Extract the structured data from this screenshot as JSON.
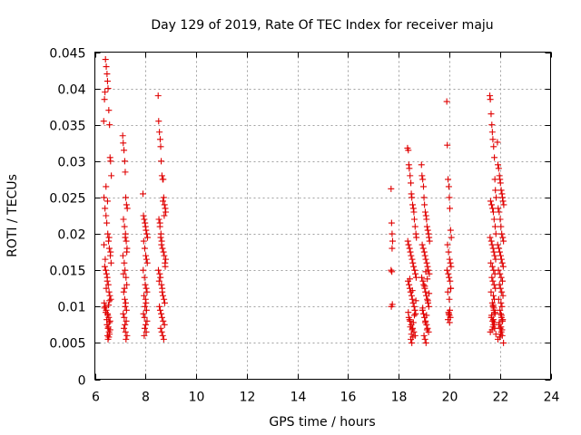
{
  "chart_data": {
    "type": "scatter",
    "title": "Day 129 of 2019, Rate Of TEC Index for receiver maju",
    "xlabel": "GPS time / hours",
    "ylabel": "ROTI / TECUs",
    "xlim": [
      6,
      24
    ],
    "ylim": [
      0,
      0.045
    ],
    "x_ticks": [
      6,
      8,
      10,
      12,
      14,
      16,
      18,
      20,
      22,
      24
    ],
    "x_tick_labels": [
      "6",
      "8",
      "10",
      "12",
      "14",
      "16",
      "18",
      "20",
      "22",
      "24"
    ],
    "y_ticks": [
      0,
      0.005,
      0.01,
      0.015,
      0.02,
      0.025,
      0.03,
      0.035,
      0.04,
      0.045
    ],
    "y_tick_labels": [
      "0",
      "0.005",
      "0.01",
      "0.015",
      "0.02",
      "0.025",
      "0.03",
      "0.035",
      "0.04",
      "0.045"
    ],
    "grid": true,
    "marker": "+",
    "color": "#e00000",
    "series": [
      {
        "name": "ROTI",
        "x": [
          6.35,
          6.38,
          6.4,
          6.42,
          6.45,
          6.48,
          6.5,
          6.52,
          6.55,
          6.58,
          6.6,
          6.62,
          6.65,
          6.36,
          6.4,
          6.44,
          6.47,
          6.51,
          6.54,
          6.57,
          6.61,
          6.64,
          6.39,
          6.43,
          6.46,
          6.49,
          6.53,
          6.56,
          6.59,
          6.63,
          6.37,
          6.41,
          6.45,
          6.5,
          6.55,
          6.6,
          6.48,
          6.52,
          6.56,
          6.5,
          6.52,
          6.55,
          6.58,
          6.6,
          6.53,
          6.57,
          6.47,
          6.51,
          6.43,
          6.38,
          6.54,
          6.58,
          6.45,
          6.49,
          6.41,
          6.62,
          6.36,
          6.56,
          6.5,
          6.44,
          7.1,
          7.12,
          7.15,
          7.18,
          7.2,
          7.22,
          7.25,
          7.28,
          7.13,
          7.17,
          7.21,
          7.24,
          7.27,
          7.11,
          7.16,
          7.19,
          7.23,
          7.26,
          7.14,
          7.18,
          7.22,
          7.2,
          7.25,
          7.12,
          7.16,
          7.24,
          7.19,
          7.15,
          7.21,
          7.27,
          7.23,
          7.13,
          7.17,
          7.26,
          7.2,
          7.9,
          7.92,
          7.95,
          7.98,
          8.0,
          8.02,
          8.05,
          8.08,
          7.93,
          7.97,
          8.01,
          8.04,
          8.07,
          7.91,
          7.96,
          7.99,
          8.03,
          8.06,
          7.94,
          8.0,
          8.02,
          7.98,
          8.04,
          7.92,
          7.96,
          8.06,
          8.01,
          7.97,
          8.03,
          7.95,
          8.5,
          8.52,
          8.55,
          8.58,
          8.6,
          8.62,
          8.65,
          8.68,
          8.7,
          8.72,
          8.75,
          8.78,
          8.8,
          8.53,
          8.57,
          8.61,
          8.64,
          8.67,
          8.71,
          8.74,
          8.77,
          8.51,
          8.56,
          8.59,
          8.63,
          8.66,
          8.69,
          8.73,
          8.76,
          8.55,
          8.58,
          8.62,
          8.65,
          8.7,
          8.75,
          8.6,
          8.64,
          8.68,
          8.72,
          8.57,
          8.6,
          8.63,
          8.8,
          8.78,
          8.66,
          8.54,
          8.74,
          8.69,
          17.7,
          17.72,
          17.74,
          17.76,
          17.7,
          17.73,
          17.75,
          17.71,
          17.74,
          18.35,
          18.38,
          18.4,
          18.42,
          18.45,
          18.48,
          18.5,
          18.52,
          18.55,
          18.58,
          18.6,
          18.62,
          18.65,
          18.68,
          18.7,
          18.36,
          18.39,
          18.43,
          18.46,
          18.49,
          18.53,
          18.56,
          18.59,
          18.63,
          18.66,
          18.69,
          18.37,
          18.41,
          18.44,
          18.47,
          18.51,
          18.54,
          18.57,
          18.61,
          18.64,
          18.67,
          18.4,
          18.45,
          18.5,
          18.55,
          18.6,
          18.65,
          18.48,
          18.52,
          18.56,
          18.5,
          18.53,
          18.46,
          18.58,
          18.43,
          18.62,
          18.38,
          18.68,
          18.54,
          18.44,
          18.9,
          18.92,
          18.95,
          18.98,
          19.0,
          19.02,
          19.05,
          19.08,
          19.1,
          19.12,
          19.15,
          19.18,
          19.2,
          19.22,
          18.93,
          18.97,
          19.01,
          19.04,
          19.07,
          19.11,
          19.14,
          19.17,
          19.21,
          18.91,
          18.96,
          18.99,
          19.03,
          19.06,
          19.09,
          19.13,
          19.16,
          19.19,
          18.94,
          18.98,
          19.02,
          19.06,
          19.1,
          19.14,
          19.18,
          19.0,
          19.04,
          19.08,
          19.12,
          19.05,
          19.1,
          18.95,
          19.15,
          19.2,
          19.03,
          19.13,
          19.07,
          19.9,
          19.92,
          19.95,
          19.98,
          20.0,
          20.02,
          20.05,
          20.08,
          19.93,
          19.97,
          20.01,
          20.04,
          20.07,
          19.91,
          19.96,
          19.99,
          20.03,
          20.06,
          19.94,
          20.0,
          20.02,
          19.98,
          20.04,
          19.95,
          20.01,
          20.0,
          19.97,
          20.05,
          21.6,
          21.62,
          21.65,
          21.68,
          21.7,
          21.72,
          21.75,
          21.78,
          21.8,
          21.82,
          21.85,
          21.63,
          21.67,
          21.71,
          21.74,
          21.77,
          21.81,
          21.84,
          21.61,
          21.66,
          21.69,
          21.73,
          21.76,
          21.79,
          21.83,
          21.64,
          21.7,
          21.75,
          21.8,
          21.68,
          21.72,
          21.77,
          21.82,
          21.65,
          21.74,
          21.78,
          21.7,
          21.73,
          21.76,
          21.8,
          21.66,
          21.71,
          21.75,
          21.79,
          21.62,
          21.84,
          21.69,
          21.72,
          21.78,
          21.74,
          21.67,
          21.81,
          21.76,
          21.73,
          21.9,
          21.92,
          21.95,
          21.98,
          22.0,
          22.02,
          22.05,
          22.08,
          22.1,
          22.12,
          22.15,
          21.93,
          21.97,
          22.01,
          22.04,
          22.07,
          22.11,
          22.14,
          21.91,
          21.96,
          21.99,
          22.03,
          22.06,
          22.09,
          22.13,
          21.94,
          22.0,
          22.05,
          22.1,
          21.98,
          22.02,
          22.07,
          22.12,
          21.95,
          22.04,
          22.08,
          22.0,
          22.03,
          22.06,
          22.1,
          21.96,
          22.01,
          22.05,
          22.09,
          21.92,
          22.14,
          21.99,
          22.02,
          22.08,
          22.04,
          21.97,
          22.11,
          22.06
        ],
        "y": [
          0.0355,
          0.0385,
          0.0395,
          0.044,
          0.043,
          0.042,
          0.041,
          0.04,
          0.037,
          0.035,
          0.0305,
          0.03,
          0.028,
          0.025,
          0.0235,
          0.0225,
          0.0215,
          0.02,
          0.019,
          0.018,
          0.017,
          0.016,
          0.0155,
          0.015,
          0.0145,
          0.014,
          0.013,
          0.012,
          0.0115,
          0.011,
          0.0105,
          0.01,
          0.0095,
          0.009,
          0.0085,
          0.008,
          0.0075,
          0.007,
          0.0065,
          0.006,
          0.0055,
          0.0058,
          0.0062,
          0.0068,
          0.0072,
          0.0078,
          0.0082,
          0.0088,
          0.0092,
          0.0098,
          0.0102,
          0.0108,
          0.0125,
          0.0135,
          0.0165,
          0.0175,
          0.0185,
          0.0195,
          0.0245,
          0.0265,
          0.0335,
          0.0325,
          0.0315,
          0.03,
          0.0285,
          0.025,
          0.024,
          0.0235,
          0.022,
          0.021,
          0.02,
          0.019,
          0.018,
          0.017,
          0.016,
          0.015,
          0.014,
          0.013,
          0.012,
          0.011,
          0.0105,
          0.01,
          0.0095,
          0.009,
          0.0085,
          0.008,
          0.0075,
          0.007,
          0.0065,
          0.006,
          0.0055,
          0.0145,
          0.0125,
          0.0175,
          0.0195,
          0.0255,
          0.0225,
          0.022,
          0.0215,
          0.021,
          0.0205,
          0.02,
          0.0195,
          0.019,
          0.018,
          0.017,
          0.0165,
          0.016,
          0.015,
          0.014,
          0.013,
          0.0125,
          0.012,
          0.0115,
          0.011,
          0.0105,
          0.01,
          0.0095,
          0.009,
          0.0085,
          0.008,
          0.0075,
          0.007,
          0.0065,
          0.006,
          0.039,
          0.0355,
          0.034,
          0.033,
          0.032,
          0.03,
          0.028,
          0.0275,
          0.0275,
          0.025,
          0.024,
          0.0235,
          0.023,
          0.022,
          0.021,
          0.02,
          0.019,
          0.018,
          0.0175,
          0.017,
          0.016,
          0.015,
          0.0145,
          0.014,
          0.013,
          0.012,
          0.0115,
          0.011,
          0.0105,
          0.01,
          0.0095,
          0.009,
          0.0085,
          0.008,
          0.0075,
          0.007,
          0.0065,
          0.006,
          0.0055,
          0.0215,
          0.0195,
          0.0185,
          0.0165,
          0.0155,
          0.0125,
          0.0135,
          0.0225,
          0.0245,
          0.0262,
          0.0215,
          0.02,
          0.019,
          0.015,
          0.0148,
          0.0103,
          0.01,
          0.018,
          0.0318,
          0.0315,
          0.0295,
          0.029,
          0.028,
          0.027,
          0.0255,
          0.025,
          0.024,
          0.0235,
          0.023,
          0.022,
          0.021,
          0.02,
          0.0195,
          0.019,
          0.0185,
          0.018,
          0.0175,
          0.017,
          0.0165,
          0.016,
          0.0155,
          0.015,
          0.0145,
          0.014,
          0.0135,
          0.013,
          0.0125,
          0.012,
          0.0115,
          0.011,
          0.0105,
          0.01,
          0.0095,
          0.009,
          0.0085,
          0.008,
          0.0075,
          0.007,
          0.0065,
          0.006,
          0.0055,
          0.005,
          0.0058,
          0.0062,
          0.0068,
          0.0072,
          0.0078,
          0.0082,
          0.0088,
          0.0092,
          0.0108,
          0.0122,
          0.0138,
          0.0295,
          0.028,
          0.0275,
          0.0265,
          0.025,
          0.024,
          0.023,
          0.0225,
          0.022,
          0.021,
          0.0205,
          0.02,
          0.0195,
          0.019,
          0.0185,
          0.018,
          0.0175,
          0.017,
          0.0165,
          0.016,
          0.0155,
          0.015,
          0.0145,
          0.014,
          0.0135,
          0.013,
          0.0125,
          0.012,
          0.0115,
          0.011,
          0.0105,
          0.01,
          0.0095,
          0.009,
          0.0085,
          0.008,
          0.0075,
          0.007,
          0.0065,
          0.006,
          0.0055,
          0.005,
          0.0068,
          0.0078,
          0.0088,
          0.0098,
          0.0108,
          0.0118,
          0.0128,
          0.0138,
          0.0148,
          0.0382,
          0.0322,
          0.0275,
          0.0265,
          0.025,
          0.0235,
          0.0205,
          0.0195,
          0.0185,
          0.0175,
          0.0165,
          0.016,
          0.0155,
          0.015,
          0.0145,
          0.014,
          0.0135,
          0.0125,
          0.012,
          0.011,
          0.0095,
          0.009,
          0.0085,
          0.0082,
          0.0078,
          0.0088,
          0.0092,
          0.0125,
          0.039,
          0.0385,
          0.0365,
          0.035,
          0.034,
          0.033,
          0.032,
          0.0305,
          0.0275,
          0.026,
          0.025,
          0.0245,
          0.024,
          0.0235,
          0.023,
          0.022,
          0.021,
          0.02,
          0.0195,
          0.019,
          0.0185,
          0.018,
          0.0175,
          0.017,
          0.0165,
          0.016,
          0.0155,
          0.015,
          0.0145,
          0.014,
          0.0135,
          0.013,
          0.0125,
          0.012,
          0.0115,
          0.011,
          0.0105,
          0.01,
          0.0095,
          0.009,
          0.0085,
          0.008,
          0.0075,
          0.007,
          0.0065,
          0.0062,
          0.0068,
          0.0072,
          0.0078,
          0.0082,
          0.0088,
          0.0092,
          0.0098,
          0.0102,
          0.0326,
          0.0295,
          0.029,
          0.028,
          0.0275,
          0.027,
          0.026,
          0.0255,
          0.025,
          0.0245,
          0.024,
          0.0235,
          0.023,
          0.022,
          0.021,
          0.02,
          0.0195,
          0.019,
          0.0185,
          0.018,
          0.0175,
          0.017,
          0.0165,
          0.016,
          0.0155,
          0.015,
          0.0145,
          0.014,
          0.0135,
          0.013,
          0.0125,
          0.012,
          0.0115,
          0.011,
          0.0105,
          0.01,
          0.0095,
          0.009,
          0.0085,
          0.008,
          0.0075,
          0.007,
          0.0065,
          0.006,
          0.0055,
          0.005,
          0.0058,
          0.0062,
          0.0068,
          0.0072,
          0.0078,
          0.0082,
          0.0088
        ]
      }
    ]
  }
}
